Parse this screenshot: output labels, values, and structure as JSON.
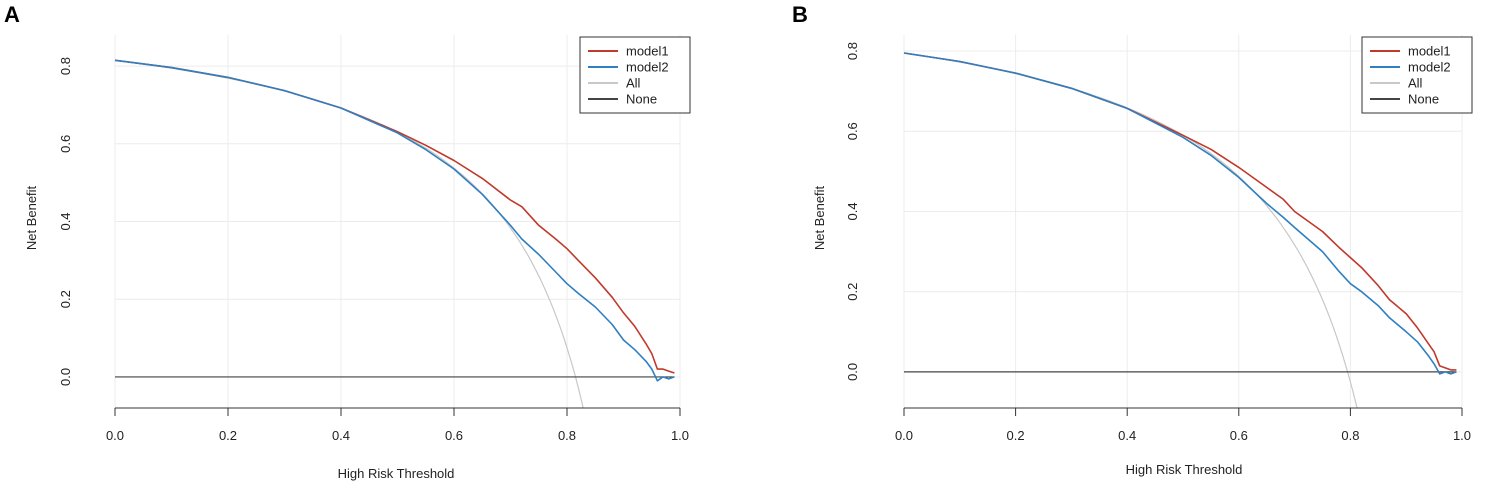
{
  "chart_data": [
    {
      "panel_label": "A",
      "type": "line",
      "title": "",
      "xlabel": "High Risk Threshold",
      "ylabel": "Net Benefit",
      "xlim": [
        0.0,
        1.0
      ],
      "ylim": [
        -0.08,
        0.88
      ],
      "x_ticks": [
        "0.0",
        "0.2",
        "0.4",
        "0.6",
        "0.8",
        "1.0"
      ],
      "y_ticks": [
        "0.0",
        "0.2",
        "0.4",
        "0.6",
        "0.8"
      ],
      "grid": true,
      "legend_position": "top-right",
      "series": [
        {
          "name": "model1",
          "color": "#c0392b",
          "x": [
            0.0,
            0.1,
            0.2,
            0.3,
            0.4,
            0.5,
            0.55,
            0.6,
            0.65,
            0.7,
            0.72,
            0.75,
            0.78,
            0.8,
            0.82,
            0.85,
            0.88,
            0.9,
            0.92,
            0.94,
            0.95,
            0.96,
            0.97,
            0.98,
            0.99
          ],
          "y": [
            0.815,
            0.796,
            0.771,
            0.737,
            0.692,
            0.631,
            0.596,
            0.557,
            0.511,
            0.455,
            0.438,
            0.39,
            0.355,
            0.33,
            0.3,
            0.255,
            0.205,
            0.165,
            0.13,
            0.085,
            0.06,
            0.02,
            0.02,
            0.015,
            0.01
          ]
        },
        {
          "name": "model2",
          "color": "#2f7fc1",
          "x": [
            0.0,
            0.1,
            0.2,
            0.3,
            0.4,
            0.5,
            0.55,
            0.6,
            0.65,
            0.7,
            0.72,
            0.75,
            0.78,
            0.8,
            0.82,
            0.85,
            0.88,
            0.9,
            0.92,
            0.94,
            0.95,
            0.96,
            0.97,
            0.98,
            0.99
          ],
          "y": [
            0.815,
            0.796,
            0.771,
            0.737,
            0.692,
            0.628,
            0.585,
            0.535,
            0.47,
            0.39,
            0.355,
            0.315,
            0.27,
            0.24,
            0.215,
            0.18,
            0.135,
            0.095,
            0.07,
            0.04,
            0.02,
            -0.01,
            0.0,
            -0.005,
            0.0
          ]
        },
        {
          "name": "All",
          "color": "#c8c8c8",
          "prevalence": 0.815
        },
        {
          "name": "None",
          "color": "#444444",
          "y_constant": 0.0
        }
      ]
    },
    {
      "panel_label": "B",
      "type": "line",
      "title": "",
      "xlabel": "High Risk Threshold",
      "ylabel": "Net Benefit",
      "xlim": [
        0.0,
        1.0
      ],
      "ylim": [
        -0.09,
        0.84
      ],
      "x_ticks": [
        "0.0",
        "0.2",
        "0.4",
        "0.6",
        "0.8",
        "1.0"
      ],
      "y_ticks": [
        "0.0",
        "0.2",
        "0.4",
        "0.6",
        "0.8"
      ],
      "grid": true,
      "legend_position": "top-right",
      "series": [
        {
          "name": "model1",
          "color": "#c0392b",
          "x": [
            0.0,
            0.1,
            0.2,
            0.3,
            0.4,
            0.5,
            0.55,
            0.6,
            0.65,
            0.68,
            0.7,
            0.75,
            0.78,
            0.8,
            0.82,
            0.85,
            0.87,
            0.9,
            0.92,
            0.94,
            0.95,
            0.96,
            0.97,
            0.98,
            0.99
          ],
          "y": [
            0.795,
            0.774,
            0.745,
            0.707,
            0.657,
            0.59,
            0.555,
            0.51,
            0.46,
            0.43,
            0.4,
            0.35,
            0.31,
            0.285,
            0.26,
            0.215,
            0.18,
            0.145,
            0.11,
            0.07,
            0.05,
            0.015,
            0.01,
            0.005,
            0.005
          ]
        },
        {
          "name": "model2",
          "color": "#2f7fc1",
          "x": [
            0.0,
            0.1,
            0.2,
            0.3,
            0.4,
            0.5,
            0.55,
            0.6,
            0.65,
            0.68,
            0.7,
            0.75,
            0.78,
            0.8,
            0.82,
            0.85,
            0.87,
            0.9,
            0.92,
            0.94,
            0.95,
            0.96,
            0.97,
            0.98,
            0.99
          ],
          "y": [
            0.795,
            0.774,
            0.745,
            0.707,
            0.657,
            0.585,
            0.54,
            0.485,
            0.42,
            0.385,
            0.36,
            0.3,
            0.25,
            0.22,
            0.2,
            0.165,
            0.135,
            0.1,
            0.075,
            0.04,
            0.02,
            -0.005,
            0.0,
            -0.005,
            0.0
          ]
        },
        {
          "name": "All",
          "color": "#c8c8c8",
          "prevalence": 0.795
        },
        {
          "name": "None",
          "color": "#444444",
          "y_constant": 0.0
        }
      ]
    }
  ]
}
